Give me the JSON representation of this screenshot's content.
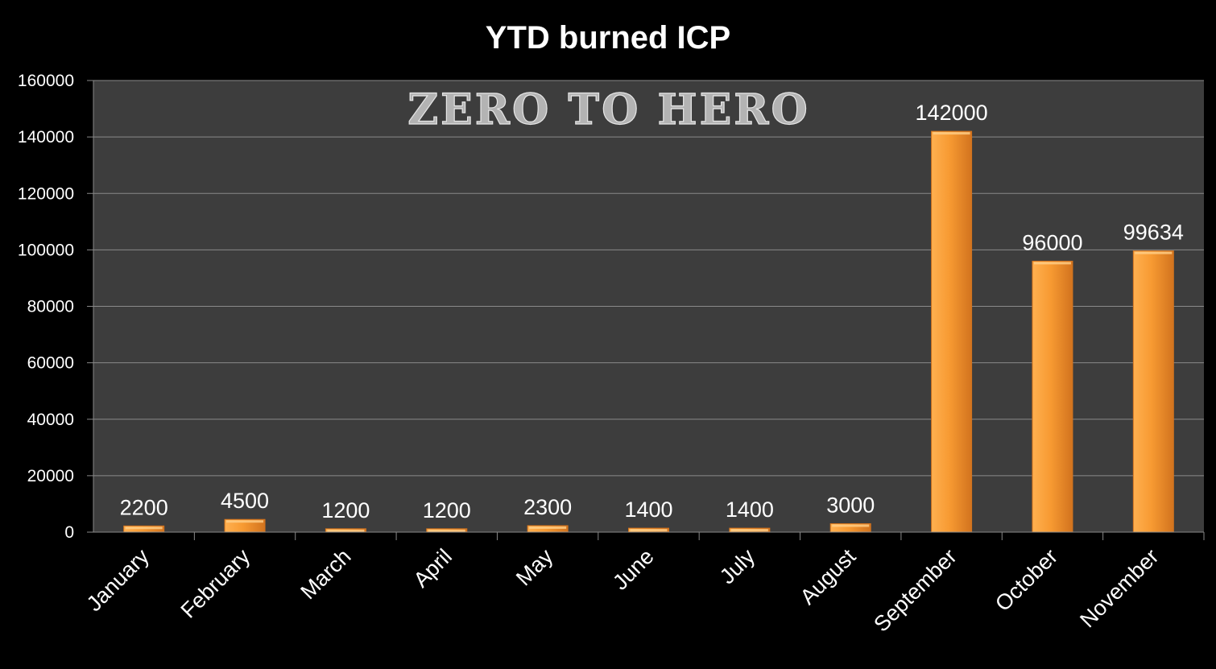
{
  "chart_data": {
    "type": "bar",
    "title": "YTD burned ICP",
    "watermark": "ZERO TO HERO",
    "categories": [
      "January",
      "February",
      "March",
      "April",
      "May",
      "June",
      "July",
      "August",
      "September",
      "October",
      "November"
    ],
    "values": [
      2200,
      4500,
      1200,
      1200,
      2300,
      1400,
      1400,
      3000,
      142000,
      96000,
      99634
    ],
    "data_labels": [
      "2200",
      "4500",
      "1200",
      "1200",
      "2300",
      "1400",
      "1400",
      "3000",
      "142000",
      "96000",
      "99634"
    ],
    "yticks": [
      "0",
      "20000",
      "40000",
      "60000",
      "80000",
      "100000",
      "120000",
      "140000",
      "160000"
    ],
    "ylim": [
      0,
      160000
    ],
    "xlabel": "",
    "ylabel": "",
    "grid": true,
    "legend": "none",
    "colors": {
      "background": "#000000",
      "plot_area": "#3d3d3d",
      "gridline": "#8a8a8a",
      "bar_light": "#ffb050",
      "bar_mid": "#f79a32",
      "bar_dark": "#d2731e",
      "text": "#ffffff",
      "watermark": "#b3b3b3"
    }
  }
}
